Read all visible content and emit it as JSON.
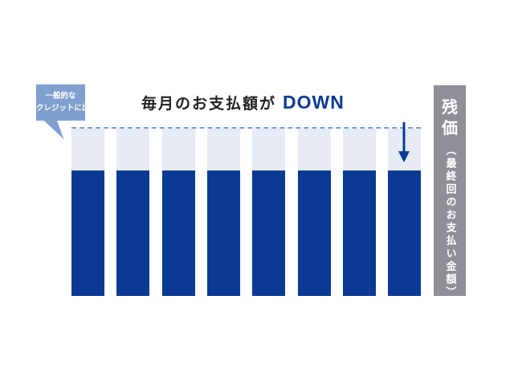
{
  "bubble": {
    "line1": "一般的な",
    "line2": "クレジットに比べ"
  },
  "title": {
    "text": "毎月のお支払額が",
    "emphasis": "DOWN"
  },
  "bars": {
    "count": 8,
    "reduced_level_fraction": 0.75
  },
  "residual": {
    "title": "残価",
    "note": "（最終回のお支払い金額）"
  },
  "colors": {
    "dark_blue": "#0a3a94",
    "light_blue": "#e6ebf5",
    "accent_blue": "#7f9fce",
    "gray": "#8f8f98"
  }
}
